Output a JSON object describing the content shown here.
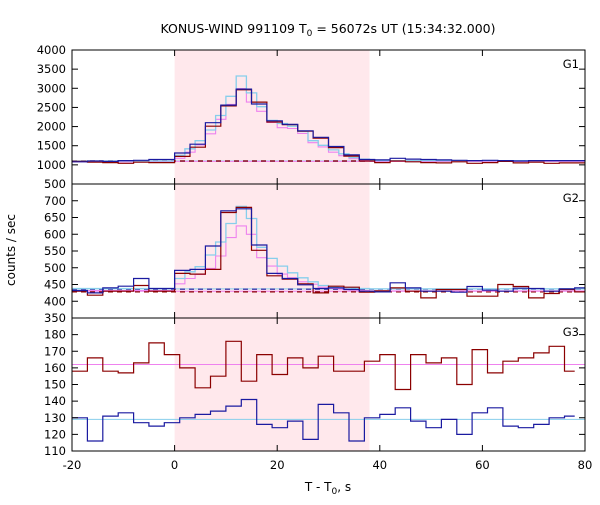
{
  "chart_data": {
    "type": "line",
    "title": {
      "main": "KONUS-WIND 991109 T",
      "sub": "0",
      "rest": " = 56072s UT (15:34:32.000)"
    },
    "xlabel": {
      "main": "T - T",
      "sub": "0",
      "rest": ", s"
    },
    "ylabel": "counts / sec",
    "xlim": [
      -20,
      80
    ],
    "xticks": [
      -20,
      0,
      20,
      40,
      60,
      80
    ],
    "shaded_interval": [
      0,
      38
    ],
    "colors": {
      "shade": "#ffe8ec",
      "fine_high": "#87ceeb",
      "fine_low": "#ee82ee",
      "coarse_high": "#1a1aa0",
      "coarse_low": "#8b0000",
      "background_dash_high": "#1a1aa0",
      "background_dash_low": "#8b0000"
    },
    "panels": [
      {
        "label": "G1",
        "ylim": [
          500,
          4000
        ],
        "yticks": [
          500,
          1000,
          1500,
          2000,
          2500,
          3000,
          3500,
          4000
        ],
        "background_dashed": [
          1100,
          1100
        ],
        "coarse_edges": [
          -20,
          -17,
          -14,
          -11,
          -8,
          -5,
          0,
          3,
          6,
          9,
          12,
          15,
          18,
          21,
          24,
          27,
          30,
          33,
          36,
          39,
          42,
          45,
          48,
          51,
          54,
          57,
          60,
          63,
          66,
          69,
          72,
          75,
          78,
          80
        ],
        "coarse_high": [
          1080,
          1100,
          1090,
          1110,
          1120,
          1140,
          1310,
          1540,
          2100,
          2560,
          2980,
          2590,
          2150,
          2060,
          1890,
          1720,
          1480,
          1260,
          1140,
          1130,
          1170,
          1150,
          1140,
          1130,
          1120,
          1110,
          1120,
          1110,
          1100,
          1110,
          1110,
          1110,
          1110
        ],
        "coarse_low": [
          1090,
          1070,
          1060,
          1040,
          1070,
          1060,
          1220,
          1460,
          2010,
          2540,
          2960,
          2640,
          2120,
          2050,
          1880,
          1700,
          1450,
          1230,
          1100,
          1060,
          1100,
          1080,
          1060,
          1050,
          1080,
          1040,
          1060,
          1090,
          1050,
          1070,
          1040,
          1050,
          1050
        ],
        "fine_edges": [
          -20,
          0,
          2,
          4,
          6,
          8,
          10,
          12,
          14,
          16,
          18,
          20,
          22,
          24,
          26,
          28,
          30,
          32,
          34,
          36,
          38,
          80
        ],
        "fine_high": [
          1100,
          1250,
          1420,
          1630,
          1910,
          2290,
          2790,
          3320,
          2880,
          2520,
          2160,
          2080,
          2010,
          1870,
          1630,
          1510,
          1390,
          1290,
          1190,
          1150,
          1110,
          1100
        ],
        "fine_low": [
          1080,
          1170,
          1330,
          1520,
          1810,
          2190,
          2580,
          2990,
          2640,
          2400,
          2110,
          1970,
          1950,
          1820,
          1580,
          1470,
          1330,
          1240,
          1160,
          1120,
          1090,
          1080
        ],
        "flat_high": 1100,
        "flat_low": 1090
      },
      {
        "label": "G2",
        "ylim": [
          350,
          750
        ],
        "yticks": [
          350,
          400,
          450,
          500,
          550,
          600,
          650,
          700
        ],
        "background_dashed": [
          436,
          428
        ],
        "coarse_edges": [
          -20,
          -17,
          -14,
          -11,
          -8,
          -5,
          0,
          3,
          6,
          9,
          12,
          15,
          18,
          21,
          24,
          27,
          30,
          33,
          36,
          39,
          42,
          45,
          48,
          51,
          54,
          57,
          60,
          63,
          66,
          69,
          72,
          75,
          78,
          80
        ],
        "coarse_high": [
          432,
          425,
          440,
          445,
          468,
          438,
          492,
          495,
          565,
          670,
          676,
          568,
          483,
          468,
          449,
          438,
          440,
          435,
          430,
          428,
          455,
          440,
          430,
          430,
          427,
          444,
          433,
          430,
          439,
          438,
          430,
          437,
          440
        ],
        "coarse_low": [
          430,
          418,
          430,
          430,
          447,
          430,
          483,
          481,
          495,
          665,
          680,
          552,
          476,
          466,
          452,
          425,
          445,
          442,
          427,
          431,
          440,
          430,
          410,
          435,
          435,
          415,
          415,
          450,
          444,
          410,
          423,
          435,
          428
        ],
        "fine_edges": [
          -20,
          0,
          2,
          4,
          6,
          8,
          10,
          12,
          14,
          16,
          18,
          20,
          22,
          24,
          26,
          28,
          30,
          32,
          34,
          36,
          38,
          80
        ],
        "fine_high": [
          438,
          468,
          488,
          503,
          538,
          577,
          632,
          683,
          647,
          561,
          528,
          505,
          485,
          470,
          458,
          447,
          443,
          440,
          439,
          438,
          437,
          436
        ],
        "fine_low": [
          432,
          452,
          468,
          480,
          498,
          535,
          590,
          625,
          600,
          530,
          505,
          481,
          470,
          458,
          451,
          442,
          438,
          436,
          434,
          432,
          431,
          430
        ],
        "flat_high": 437,
        "flat_low": 430
      },
      {
        "label": "G3",
        "ylim": [
          110,
          190
        ],
        "yticks": [
          110,
          120,
          130,
          140,
          150,
          160,
          170,
          180
        ],
        "background_dashed": [],
        "coarse_edges": [
          -20,
          -17,
          -14,
          -11,
          -8,
          -5,
          -2,
          1,
          4,
          7,
          10,
          13,
          16,
          19,
          22,
          25,
          28,
          31,
          34,
          37,
          40,
          43,
          46,
          49,
          52,
          55,
          58,
          61,
          64,
          67,
          70,
          73,
          76,
          78
        ],
        "coarse_high": [
          130,
          116,
          131,
          133,
          127,
          125,
          127,
          130,
          132,
          134,
          137,
          141,
          126,
          124,
          128,
          117,
          138,
          133,
          116,
          130,
          132,
          136,
          128,
          124,
          129,
          120,
          133,
          136,
          125,
          124,
          126,
          130,
          131,
          131
        ],
        "coarse_low": [
          158,
          166,
          158,
          157,
          163,
          175,
          168,
          160,
          148,
          155,
          176,
          152,
          168,
          156,
          166,
          160,
          167,
          158,
          158,
          164,
          168,
          147,
          168,
          163,
          166,
          150,
          171,
          157,
          164,
          166,
          169,
          173,
          158,
          158
        ],
        "fine_edges": [],
        "fine_high": [],
        "fine_low": [],
        "flat_high": 129,
        "flat_low": 162
      }
    ]
  }
}
